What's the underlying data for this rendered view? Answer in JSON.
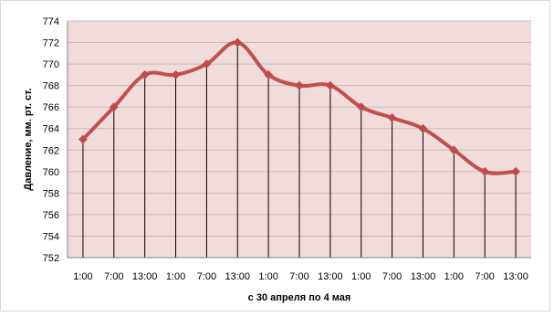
{
  "chart_data": {
    "type": "line",
    "title": "",
    "xlabel": "с 30 апреля по 4 мая",
    "ylabel": "Давление, мм. рт. ст.",
    "ylim": [
      752,
      774
    ],
    "y_ticks": [
      "752",
      "754",
      "756",
      "758",
      "760",
      "762",
      "764",
      "766",
      "768",
      "770",
      "772",
      "774"
    ],
    "categories": [
      "1:00",
      "7:00",
      "13:00",
      "1:00",
      "7:00",
      "13:00",
      "1:00",
      "7:00",
      "13:00",
      "1:00",
      "7:00",
      "13:00",
      "1:00",
      "7:00",
      "13:00"
    ],
    "series": [
      {
        "values": [
          763,
          766,
          769,
          769,
          770,
          772,
          769,
          768,
          768,
          766,
          765,
          764,
          762,
          760,
          760
        ]
      }
    ],
    "grid": "horizontal",
    "drop_lines": true,
    "legend": "none",
    "colors": {
      "plot_background": "#f2dcdb",
      "line": "#c0504d",
      "marker": "#be4b48",
      "gridline": "#bfbfbf",
      "drop_line": "#000000"
    }
  }
}
